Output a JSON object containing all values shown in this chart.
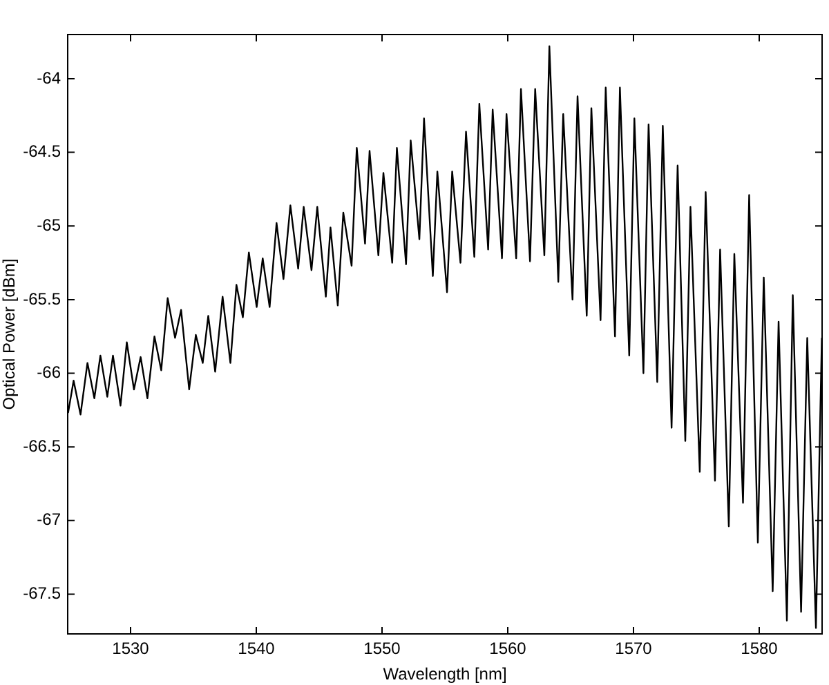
{
  "chart_data": {
    "type": "line",
    "xlabel": "Wavelength [nm]",
    "ylabel": "Optical Power [dBm]",
    "xlim": [
      1525,
      1585
    ],
    "ylim": [
      -67.77,
      -63.7
    ],
    "xticks": [
      1530,
      1540,
      1550,
      1560,
      1570,
      1580
    ],
    "yticks": [
      -67.5,
      -67,
      -66.5,
      -66,
      -65.5,
      -65,
      -64.5,
      -64
    ],
    "grid": false,
    "legend": false,
    "marker": "none",
    "line_style": "solid",
    "series": [
      {
        "color": "#000000",
        "x": [
          1525.03,
          1525.47,
          1526.02,
          1526.57,
          1527.12,
          1527.6,
          1528.15,
          1528.6,
          1529.2,
          1529.7,
          1530.27,
          1530.8,
          1531.34,
          1531.9,
          1532.44,
          1532.95,
          1533.54,
          1534.02,
          1534.66,
          1535.19,
          1535.74,
          1536.18,
          1536.73,
          1537.32,
          1537.94,
          1538.42,
          1538.93,
          1539.41,
          1540.03,
          1540.51,
          1541.06,
          1541.61,
          1542.16,
          1542.71,
          1543.33,
          1543.77,
          1544.39,
          1544.85,
          1545.53,
          1545.9,
          1546.48,
          1546.92,
          1547.58,
          1547.99,
          1548.65,
          1549.01,
          1549.71,
          1550.11,
          1550.81,
          1551.18,
          1551.91,
          1552.28,
          1552.97,
          1553.34,
          1554.04,
          1554.4,
          1555.17,
          1555.58,
          1556.24,
          1556.68,
          1557.34,
          1557.74,
          1558.44,
          1558.8,
          1559.54,
          1559.9,
          1560.67,
          1561.05,
          1561.77,
          1562.18,
          1562.91,
          1563.31,
          1564.02,
          1564.41,
          1565.15,
          1565.55,
          1566.28,
          1566.65,
          1567.38,
          1567.79,
          1568.53,
          1568.92,
          1569.66,
          1570.07,
          1570.79,
          1571.2,
          1571.89,
          1572.33,
          1573.03,
          1573.51,
          1574.12,
          1574.53,
          1575.27,
          1575.74,
          1576.48,
          1576.89,
          1577.58,
          1578.02,
          1578.71,
          1579.2,
          1579.89,
          1580.36,
          1581.07,
          1581.54,
          1582.2,
          1582.67,
          1583.33,
          1583.82,
          1584.51,
          1584.98
        ],
        "values": [
          -66.27,
          -66.05,
          -66.28,
          -65.93,
          -66.17,
          -65.88,
          -66.16,
          -65.88,
          -66.22,
          -65.79,
          -66.11,
          -65.89,
          -66.17,
          -65.75,
          -65.98,
          -65.49,
          -65.76,
          -65.57,
          -66.11,
          -65.74,
          -65.93,
          -65.61,
          -65.99,
          -65.48,
          -65.93,
          -65.4,
          -65.62,
          -65.18,
          -65.55,
          -65.22,
          -65.55,
          -64.98,
          -65.36,
          -64.86,
          -65.29,
          -64.87,
          -65.3,
          -64.87,
          -65.48,
          -65.01,
          -65.54,
          -64.91,
          -65.27,
          -64.47,
          -65.12,
          -64.49,
          -65.2,
          -64.64,
          -65.25,
          -64.47,
          -65.26,
          -64.42,
          -65.09,
          -64.27,
          -65.34,
          -64.63,
          -65.45,
          -64.63,
          -65.25,
          -64.36,
          -65.21,
          -64.17,
          -65.16,
          -64.21,
          -65.22,
          -64.24,
          -65.22,
          -64.07,
          -65.24,
          -64.07,
          -65.2,
          -63.78,
          -65.38,
          -64.24,
          -65.5,
          -64.12,
          -65.61,
          -64.2,
          -65.64,
          -64.06,
          -65.75,
          -64.06,
          -65.88,
          -64.27,
          -66,
          -64.31,
          -66.06,
          -64.32,
          -66.37,
          -64.59,
          -66.46,
          -64.87,
          -66.67,
          -64.77,
          -66.73,
          -65.16,
          -67.04,
          -65.19,
          -66.88,
          -64.79,
          -67.15,
          -65.35,
          -67.48,
          -65.65,
          -67.68,
          -65.47,
          -67.62,
          -65.76,
          -67.73,
          -65.76
        ]
      }
    ]
  }
}
